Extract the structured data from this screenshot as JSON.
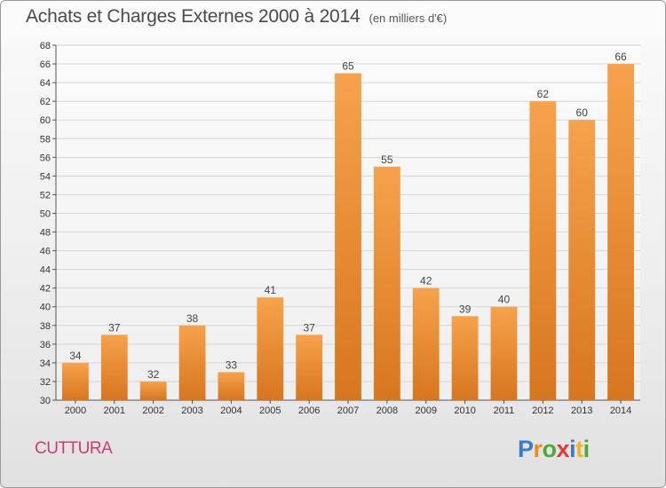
{
  "header": {
    "title": "Achats et Charges Externes 2000 à 2014",
    "subtitle": "(en milliers d'€)"
  },
  "footer": {
    "commune": "CUTTURA",
    "logo_text": "Proxiti"
  },
  "colors": {
    "bar_light": "#f6a24c",
    "bar_dark": "#d7761f",
    "commune_text": "#cc3a73",
    "grid": "#d6d6d6"
  },
  "chart_data": {
    "type": "bar",
    "title": "Achats et Charges Externes 2000 à 2014",
    "subtitle": "(en milliers d'€)",
    "xlabel": "",
    "ylabel": "",
    "categories": [
      "2000",
      "2001",
      "2002",
      "2003",
      "2004",
      "2005",
      "2006",
      "2007",
      "2008",
      "2009",
      "2010",
      "2011",
      "2012",
      "2013",
      "2014"
    ],
    "values": [
      34,
      37,
      32,
      38,
      33,
      41,
      37,
      65,
      55,
      42,
      39,
      40,
      62,
      60,
      66
    ],
    "ylim": [
      30,
      68
    ],
    "yticks": [
      30,
      32,
      34,
      36,
      38,
      40,
      42,
      44,
      46,
      48,
      50,
      52,
      54,
      56,
      58,
      60,
      62,
      64,
      66,
      68
    ],
    "grid": true,
    "data_labels": true
  }
}
